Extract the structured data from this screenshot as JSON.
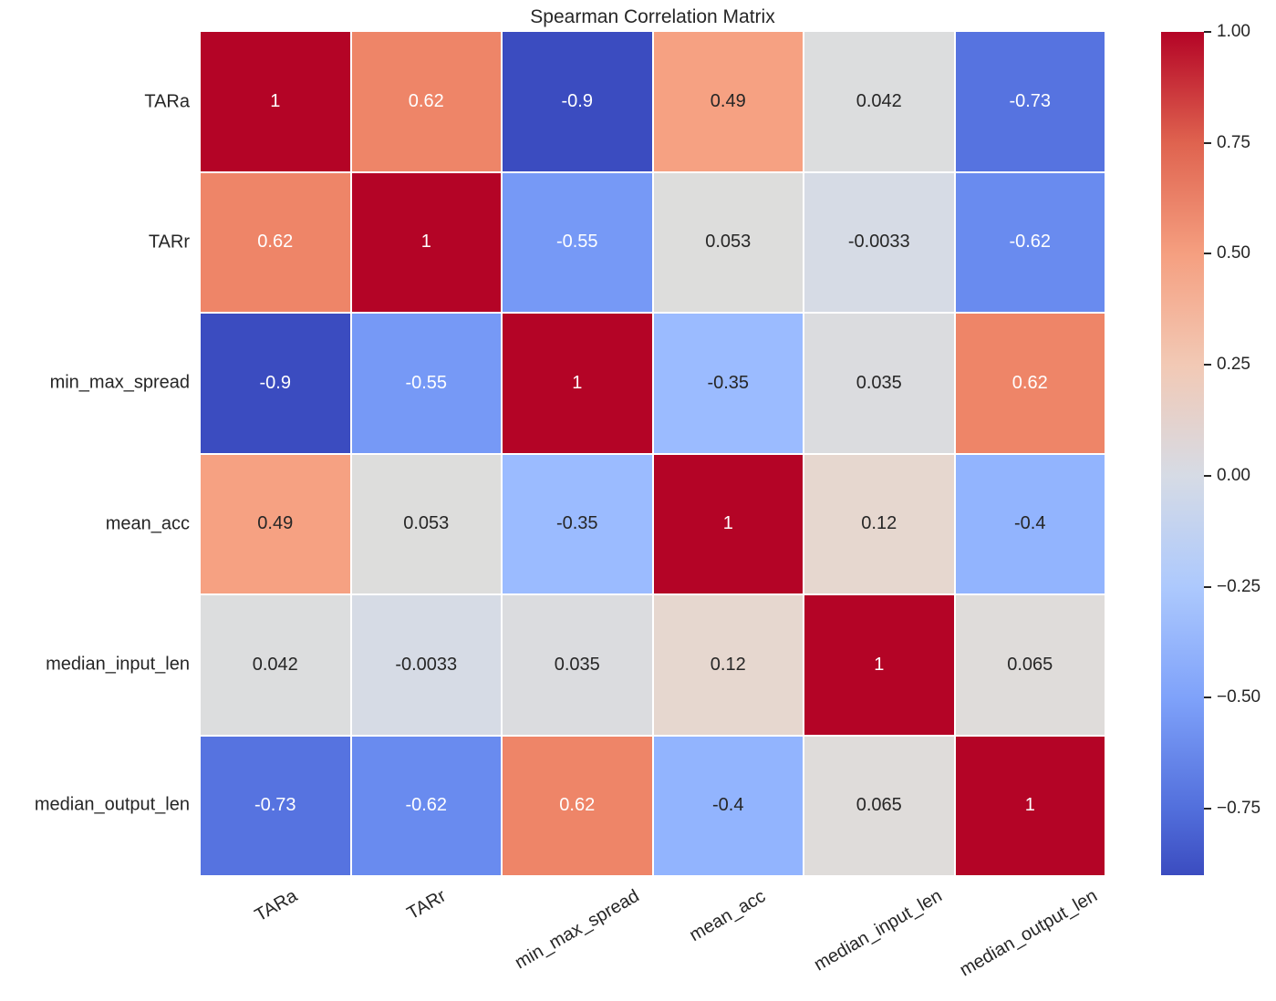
{
  "title": "Spearman Correlation Matrix",
  "chart_data": {
    "type": "heatmap",
    "title": "Spearman Correlation Matrix",
    "categories": [
      "TARa",
      "TARr",
      "min_max_spread",
      "mean_acc",
      "median_input_len",
      "median_output_len"
    ],
    "matrix": [
      [
        1,
        0.62,
        -0.9,
        0.49,
        0.042,
        -0.73
      ],
      [
        0.62,
        1,
        -0.55,
        0.053,
        -0.0033,
        -0.62
      ],
      [
        -0.9,
        -0.55,
        1,
        -0.35,
        0.035,
        0.62
      ],
      [
        0.49,
        0.053,
        -0.35,
        1,
        0.12,
        -0.4
      ],
      [
        0.042,
        -0.0033,
        0.035,
        0.12,
        1,
        0.065
      ],
      [
        -0.73,
        -0.62,
        0.62,
        -0.4,
        0.065,
        1
      ]
    ],
    "cell_labels": [
      [
        "1",
        "0.62",
        "-0.9",
        "0.49",
        "0.042",
        "-0.73"
      ],
      [
        "0.62",
        "1",
        "-0.55",
        "0.053",
        "-0.0033",
        "-0.62"
      ],
      [
        "-0.9",
        "-0.55",
        "1",
        "-0.35",
        "0.035",
        "0.62"
      ],
      [
        "0.49",
        "0.053",
        "-0.35",
        "1",
        "0.12",
        "-0.4"
      ],
      [
        "0.042",
        "-0.0033",
        "0.035",
        "0.12",
        "1",
        "0.065"
      ],
      [
        "-0.73",
        "-0.62",
        "0.62",
        "-0.4",
        "0.065",
        "1"
      ]
    ],
    "cell_colors": [
      [
        "#b40426",
        "#ee8568",
        "#3b4cc0",
        "#f6a182",
        "#dcddde",
        "#5673e0"
      ],
      [
        "#ee8568",
        "#b40426",
        "#7699f6",
        "#dddddc",
        "#d6dbe5",
        "#698bef"
      ],
      [
        "#3b4cc0",
        "#7699f6",
        "#b40426",
        "#9bbbff",
        "#dbdcdf",
        "#ee8568"
      ],
      [
        "#f6a182",
        "#dddddc",
        "#9bbbff",
        "#b40426",
        "#e6d7cf",
        "#92b4fe"
      ],
      [
        "#dcddde",
        "#d6dbe5",
        "#dbdcdf",
        "#e6d7cf",
        "#b40426",
        "#dfdcda"
      ],
      [
        "#5673e0",
        "#698bef",
        "#ee8568",
        "#92b4fe",
        "#dfdcda",
        "#b40426"
      ]
    ],
    "colormap": "coolwarm",
    "vmin": -0.9,
    "vmax": 1.0,
    "grid_line_color": "#ffffff",
    "annotation_dark_color": "#262626",
    "annotation_light_color": "#ffffff",
    "colorbar": {
      "ticks": [
        {
          "label": "1.00",
          "value": 1.0
        },
        {
          "label": "0.75",
          "value": 0.75
        },
        {
          "label": "0.50",
          "value": 0.5
        },
        {
          "label": "0.25",
          "value": 0.25
        },
        {
          "label": "0.00",
          "value": 0.0
        },
        {
          "label": "−0.25",
          "value": -0.25
        },
        {
          "label": "−0.50",
          "value": -0.5
        },
        {
          "label": "−0.75",
          "value": -0.75
        }
      ],
      "gradient": [
        {
          "pos": 0,
          "color": "#b40426"
        },
        {
          "pos": 13.16,
          "color": "#df634f"
        },
        {
          "pos": 26.32,
          "color": "#f59f80"
        },
        {
          "pos": 39.47,
          "color": "#f2c9b5"
        },
        {
          "pos": 52.63,
          "color": "#d6dbe5"
        },
        {
          "pos": 65.79,
          "color": "#adc9fd"
        },
        {
          "pos": 78.95,
          "color": "#7fa2fa"
        },
        {
          "pos": 92.11,
          "color": "#526fdc"
        },
        {
          "pos": 100,
          "color": "#3b4cc0"
        }
      ]
    }
  }
}
